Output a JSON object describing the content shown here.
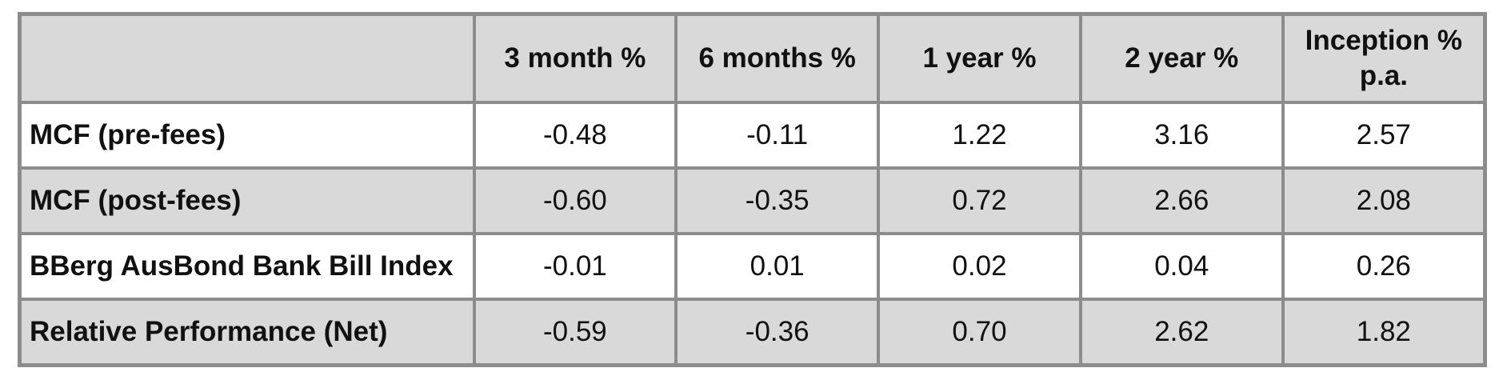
{
  "table": {
    "headers": [
      "",
      "3 month %",
      "6 months %",
      "1 year %",
      "2 year %",
      "Inception % p.a."
    ],
    "rows": [
      {
        "label": "MCF (pre-fees)",
        "values": [
          "-0.48",
          "-0.11",
          "1.22",
          "3.16",
          "2.57"
        ]
      },
      {
        "label": "MCF (post-fees)",
        "values": [
          "-0.60",
          "-0.35",
          "0.72",
          "2.66",
          "2.08"
        ]
      },
      {
        "label": "BBerg AusBond Bank Bill Index",
        "values": [
          "-0.01",
          "0.01",
          "0.02",
          "0.04",
          "0.26"
        ]
      },
      {
        "label": "Relative Performance (Net)",
        "values": [
          "-0.59",
          "-0.36",
          "0.70",
          "2.62",
          "1.82"
        ]
      }
    ]
  },
  "colors": {
    "header_bg": "#d9d9d9",
    "row_alt_bg": "#d9d9d9",
    "row_bg": "#ffffff",
    "border": "#8c8c8c",
    "text": "#111111"
  }
}
